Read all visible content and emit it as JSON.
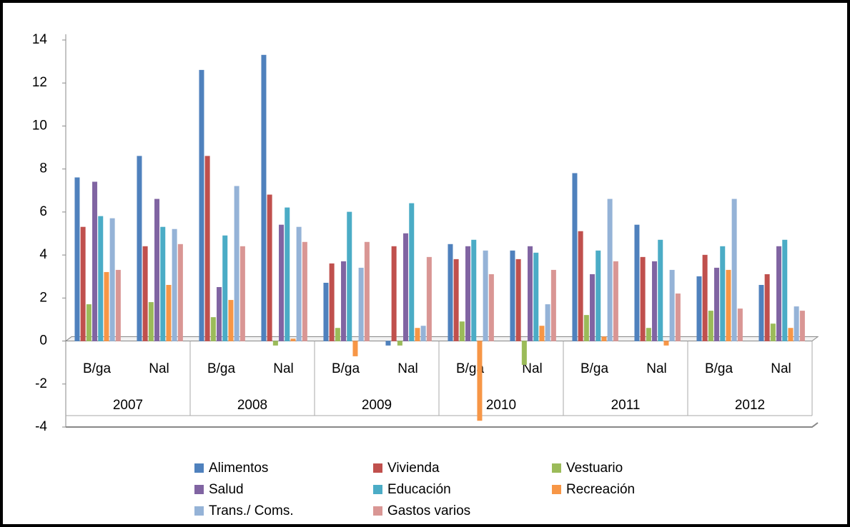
{
  "chart_data": {
    "type": "bar",
    "categories": [
      "B/ga",
      "Nal",
      "B/ga",
      "Nal",
      "B/ga",
      "Nal",
      "B/ga",
      "Nal",
      "B/ga",
      "Nal",
      "B/ga",
      "Nal"
    ],
    "category_groups": [
      "2007",
      "2008",
      "2009",
      "2010",
      "2011",
      "2012"
    ],
    "series": [
      {
        "name": "Alimentos",
        "color": "#4f81bd",
        "values": [
          7.6,
          8.6,
          12.6,
          13.3,
          2.7,
          -0.2,
          4.5,
          4.2,
          7.8,
          5.4,
          3.0,
          2.6
        ]
      },
      {
        "name": "Vivienda",
        "color": "#c0504d",
        "values": [
          5.3,
          4.4,
          8.6,
          6.8,
          3.6,
          4.4,
          3.8,
          3.8,
          5.1,
          3.9,
          4.0,
          3.1
        ]
      },
      {
        "name": "Vestuario",
        "color": "#9bbb59",
        "values": [
          1.7,
          1.8,
          1.1,
          -0.2,
          0.6,
          -0.2,
          0.9,
          -1.1,
          1.2,
          0.6,
          1.4,
          0.8
        ]
      },
      {
        "name": "Salud",
        "color": "#8064a2",
        "values": [
          7.4,
          6.6,
          2.5,
          5.4,
          3.7,
          5.0,
          4.4,
          4.4,
          3.1,
          3.7,
          3.4,
          4.4
        ]
      },
      {
        "name": "Educación",
        "color": "#4bacc6",
        "values": [
          5.8,
          5.3,
          4.9,
          6.2,
          6.0,
          6.4,
          4.7,
          4.1,
          4.2,
          4.7,
          4.4,
          4.7
        ]
      },
      {
        "name": "Recreación",
        "color": "#f79646",
        "values": [
          3.2,
          2.6,
          1.9,
          0.1,
          -0.7,
          0.6,
          -3.7,
          0.7,
          0.2,
          -0.2,
          3.3,
          0.6
        ]
      },
      {
        "name": "Trans./ Coms.",
        "color": "#95b3d7",
        "values": [
          5.7,
          5.2,
          7.2,
          5.3,
          3.4,
          0.7,
          4.2,
          1.7,
          6.6,
          3.3,
          6.6,
          1.6
        ]
      },
      {
        "name": "Gastos varios",
        "color": "#d99694",
        "values": [
          3.3,
          4.5,
          4.4,
          4.6,
          4.6,
          3.9,
          3.1,
          3.3,
          3.7,
          2.2,
          1.5,
          1.4
        ]
      }
    ],
    "ylim": [
      -4,
      14
    ],
    "yticks": [
      -4,
      -2,
      0,
      2,
      4,
      6,
      8,
      10,
      12,
      14
    ],
    "legend": "bottom"
  }
}
